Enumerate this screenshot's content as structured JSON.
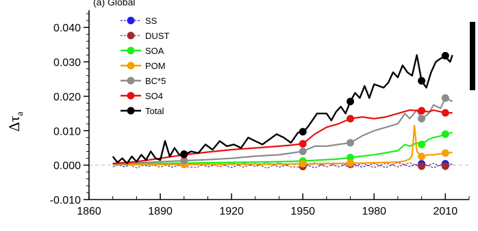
{
  "chart_data": {
    "type": "line",
    "title": "(a)  Global",
    "ylabel": "Δτ",
    "ylabel_sub": "a",
    "xlim": [
      1860,
      2020
    ],
    "ylim": [
      -0.01,
      0.045
    ],
    "x_ticks": [
      1860,
      1890,
      1920,
      1950,
      1980,
      2010
    ],
    "x_tick_labels": [
      "1860",
      "1890",
      "1920",
      "1950",
      "1980",
      "2010"
    ],
    "y_ticks": [
      -0.01,
      0.0,
      0.01,
      0.02,
      0.03,
      0.04
    ],
    "y_tick_labels": [
      "-0.010",
      "0.000",
      "0.010",
      "0.020",
      "0.030",
      "0.040"
    ],
    "zero_line": true,
    "legend_position": "top-left",
    "series": [
      {
        "name": "SS",
        "color": "#1f1fe6",
        "style": "dashed",
        "x": [
          1870,
          1875,
          1880,
          1885,
          1890,
          1895,
          1900,
          1905,
          1910,
          1915,
          1920,
          1925,
          1930,
          1935,
          1940,
          1945,
          1950,
          1955,
          1960,
          1965,
          1970,
          1975,
          1980,
          1985,
          1990,
          1995,
          2000,
          2005,
          2010,
          2013
        ],
        "y": [
          0.0005,
          -0.0005,
          0.0008,
          -0.0004,
          0.0006,
          -0.0006,
          0.0003,
          0.0007,
          -0.0005,
          0.0004,
          -0.0007,
          0.0006,
          -0.0004,
          0.0008,
          -0.0006,
          0.0004,
          0.0005,
          -0.0008,
          0.0006,
          -0.0005,
          0.0007,
          -0.0006,
          0.0005,
          -0.0007,
          0.0008,
          -0.0004,
          0.0006,
          -0.0008,
          0.0007,
          0.0002
        ],
        "markers": [
          [
            1900,
            0.0002
          ],
          [
            1950,
            0.0005
          ],
          [
            1970,
            0.0005
          ],
          [
            2000,
            0.0004
          ],
          [
            2010,
            0.0004
          ]
        ]
      },
      {
        "name": "DUST",
        "color": "#a52a2a",
        "style": "dashed",
        "x": [
          1870,
          1875,
          1880,
          1885,
          1890,
          1895,
          1900,
          1905,
          1910,
          1915,
          1920,
          1925,
          1930,
          1935,
          1940,
          1945,
          1950,
          1955,
          1960,
          1965,
          1970,
          1975,
          1980,
          1985,
          1990,
          1995,
          2000,
          2005,
          2010,
          2013
        ],
        "y": [
          -0.0005,
          0.0006,
          -0.0008,
          0.0005,
          -0.0006,
          0.0007,
          -0.0004,
          -0.0007,
          0.0006,
          -0.0005,
          0.0008,
          -0.0006,
          0.0005,
          -0.0009,
          0.0007,
          -0.0005,
          -0.0006,
          0.0007,
          -0.0005,
          0.0006,
          -0.0008,
          0.0005,
          -0.0007,
          0.0006,
          -0.0005,
          0.0007,
          -0.0006,
          0.0005,
          -0.0007,
          0.0003
        ],
        "markers": [
          [
            1900,
            0.0003
          ],
          [
            1950,
            -0.0004
          ],
          [
            1970,
            0.0003
          ],
          [
            2000,
            -0.0003
          ],
          [
            2010,
            -0.0003
          ]
        ]
      },
      {
        "name": "SOA",
        "color": "#18f018",
        "style": "solid",
        "x": [
          1870,
          1880,
          1890,
          1900,
          1910,
          1920,
          1930,
          1940,
          1950,
          1955,
          1960,
          1965,
          1970,
          1975,
          1980,
          1985,
          1990,
          1993,
          1995,
          1998,
          2000,
          2003,
          2005,
          2008,
          2010,
          2013
        ],
        "y": [
          0.0003,
          0.0004,
          0.0005,
          0.0006,
          0.0007,
          0.0008,
          0.0009,
          0.001,
          0.0012,
          0.0014,
          0.0016,
          0.0018,
          0.0022,
          0.0026,
          0.003,
          0.0036,
          0.0042,
          0.006,
          0.0055,
          0.0065,
          0.006,
          0.0075,
          0.008,
          0.0085,
          0.009,
          0.0095
        ],
        "markers": [
          [
            1900,
            0.0006
          ],
          [
            1950,
            0.0012
          ],
          [
            1970,
            0.0022
          ],
          [
            2000,
            0.006
          ],
          [
            2010,
            0.009
          ]
        ]
      },
      {
        "name": "POM",
        "color": "#f5a000",
        "style": "solid",
        "x": [
          1870,
          1880,
          1890,
          1900,
          1910,
          1920,
          1930,
          1940,
          1950,
          1955,
          1960,
          1965,
          1970,
          1975,
          1980,
          1985,
          1990,
          1993,
          1995,
          1996,
          1997,
          1998,
          2000,
          2003,
          2005,
          2008,
          2010,
          2013
        ],
        "y": [
          0.0001,
          0.0001,
          0.0002,
          0.0002,
          0.0002,
          0.0003,
          0.0003,
          0.0003,
          0.0004,
          0.0004,
          0.0005,
          0.0005,
          0.0006,
          0.0006,
          0.0007,
          0.0008,
          0.0009,
          0.0012,
          0.0018,
          0.0028,
          0.0115,
          0.004,
          0.0025,
          0.003,
          0.003,
          0.0033,
          0.0035,
          0.0037
        ],
        "markers": [
          [
            1900,
            0.0002
          ],
          [
            1950,
            0.0004
          ],
          [
            1970,
            0.0006
          ],
          [
            2000,
            0.0025
          ],
          [
            2010,
            0.0035
          ]
        ]
      },
      {
        "name": "BC*5",
        "color": "#8c8c8c",
        "style": "solid",
        "x": [
          1870,
          1880,
          1890,
          1900,
          1910,
          1920,
          1930,
          1940,
          1950,
          1955,
          1960,
          1965,
          1970,
          1975,
          1980,
          1985,
          1990,
          1993,
          1995,
          1998,
          2000,
          2003,
          2005,
          2008,
          2010,
          2013
        ],
        "y": [
          0.0003,
          0.0006,
          0.001,
          0.0013,
          0.0016,
          0.002,
          0.0026,
          0.003,
          0.004,
          0.0055,
          0.0055,
          0.006,
          0.0065,
          0.0085,
          0.01,
          0.011,
          0.012,
          0.015,
          0.0135,
          0.016,
          0.0135,
          0.015,
          0.0175,
          0.0165,
          0.0195,
          0.0185
        ],
        "markers": [
          [
            1900,
            0.0013
          ],
          [
            1950,
            0.004
          ],
          [
            1970,
            0.0065
          ],
          [
            2000,
            0.0135
          ],
          [
            2010,
            0.0195
          ]
        ]
      },
      {
        "name": "SO4",
        "color": "#e81010",
        "style": "solid",
        "x": [
          1870,
          1880,
          1890,
          1900,
          1910,
          1920,
          1930,
          1940,
          1945,
          1950,
          1955,
          1960,
          1965,
          1970,
          1975,
          1980,
          1985,
          1990,
          1995,
          2000,
          2003,
          2005,
          2008,
          2010,
          2013
        ],
        "y": [
          0.0005,
          0.001,
          0.002,
          0.003,
          0.0038,
          0.0045,
          0.005,
          0.0055,
          0.0058,
          0.0062,
          0.009,
          0.011,
          0.012,
          0.0135,
          0.014,
          0.0135,
          0.014,
          0.015,
          0.016,
          0.0158,
          0.0155,
          0.016,
          0.0155,
          0.0152,
          0.0152
        ],
        "markers": [
          [
            1900,
            0.003
          ],
          [
            1950,
            0.0062
          ],
          [
            1970,
            0.0135
          ],
          [
            2000,
            0.0158
          ],
          [
            2010,
            0.0152
          ]
        ]
      },
      {
        "name": "Total",
        "color": "#000000",
        "style": "solid",
        "x": [
          1870,
          1872,
          1874,
          1876,
          1878,
          1880,
          1882,
          1884,
          1886,
          1888,
          1890,
          1892,
          1894,
          1896,
          1898,
          1900,
          1903,
          1906,
          1909,
          1912,
          1915,
          1918,
          1921,
          1924,
          1927,
          1930,
          1933,
          1936,
          1939,
          1942,
          1945,
          1948,
          1950,
          1952,
          1954,
          1956,
          1958,
          1960,
          1962,
          1964,
          1966,
          1968,
          1970,
          1972,
          1974,
          1976,
          1978,
          1980,
          1982,
          1984,
          1986,
          1988,
          1990,
          1992,
          1994,
          1996,
          1998,
          2000,
          2002,
          2004,
          2006,
          2008,
          2010,
          2012,
          2013
        ],
        "y": [
          0.0025,
          0.0008,
          0.002,
          0.0005,
          0.0025,
          0.001,
          0.003,
          0.0015,
          0.004,
          0.002,
          0.0015,
          0.007,
          0.0025,
          0.005,
          0.003,
          0.003,
          0.004,
          0.0035,
          0.006,
          0.0045,
          0.007,
          0.0055,
          0.006,
          0.005,
          0.008,
          0.007,
          0.006,
          0.0075,
          0.009,
          0.008,
          0.0065,
          0.0095,
          0.0095,
          0.011,
          0.013,
          0.015,
          0.015,
          0.015,
          0.013,
          0.0155,
          0.017,
          0.015,
          0.0185,
          0.021,
          0.0195,
          0.023,
          0.0195,
          0.0235,
          0.023,
          0.0225,
          0.024,
          0.027,
          0.0255,
          0.029,
          0.027,
          0.026,
          0.032,
          0.0245,
          0.0225,
          0.027,
          0.03,
          0.031,
          0.0315,
          0.03,
          0.032
        ],
        "markers": [
          [
            1900,
            0.0032
          ],
          [
            1950,
            0.0097
          ],
          [
            1970,
            0.0185
          ],
          [
            2000,
            0.0245
          ],
          [
            2010,
            0.0318
          ]
        ]
      }
    ]
  }
}
